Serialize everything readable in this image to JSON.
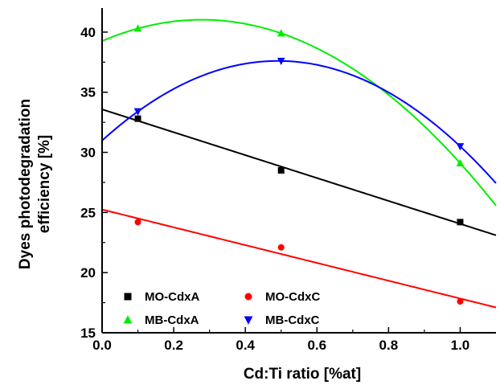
{
  "chart_data": {
    "type": "scatter",
    "xlabel": "Cd:Ti ratio [%at]",
    "ylabel_lines": [
      "Dyes photodegradation",
      "efficiency [%]"
    ],
    "xlim": [
      0.0,
      1.1
    ],
    "ylim": [
      15,
      42
    ],
    "x_ticks": [
      0.0,
      0.2,
      0.4,
      0.6,
      0.8,
      1.0
    ],
    "x_tick_labels": [
      "0.0",
      "0.2",
      "0.4",
      "0.6",
      "0.8",
      "1.0"
    ],
    "y_ticks": [
      15,
      20,
      25,
      30,
      35,
      40
    ],
    "y_tick_labels": [
      "15",
      "20",
      "25",
      "30",
      "35",
      "40"
    ],
    "legend_position": "bottom-left",
    "series": [
      {
        "name": "MO-CdxA",
        "marker": "square",
        "color": "#000000",
        "x": [
          0.1,
          0.5,
          1.0
        ],
        "y": [
          32.8,
          28.5,
          24.2
        ],
        "fit": "linear"
      },
      {
        "name": "MO-CdxC",
        "marker": "circle",
        "color": "#ff0000",
        "x": [
          0.1,
          0.5,
          1.0
        ],
        "y": [
          24.2,
          22.1,
          17.6
        ],
        "fit": "linear"
      },
      {
        "name": "MB-CdxA",
        "marker": "triangle-up",
        "color": "#00ee00",
        "x": [
          0.1,
          0.5,
          1.0
        ],
        "y": [
          40.3,
          39.9,
          29.1
        ],
        "fit": "quadratic"
      },
      {
        "name": "MB-CdxC",
        "marker": "triangle-down",
        "color": "#0000ff",
        "x": [
          0.1,
          0.5,
          1.0
        ],
        "y": [
          33.4,
          37.6,
          30.5
        ],
        "fit": "quadratic"
      }
    ]
  }
}
